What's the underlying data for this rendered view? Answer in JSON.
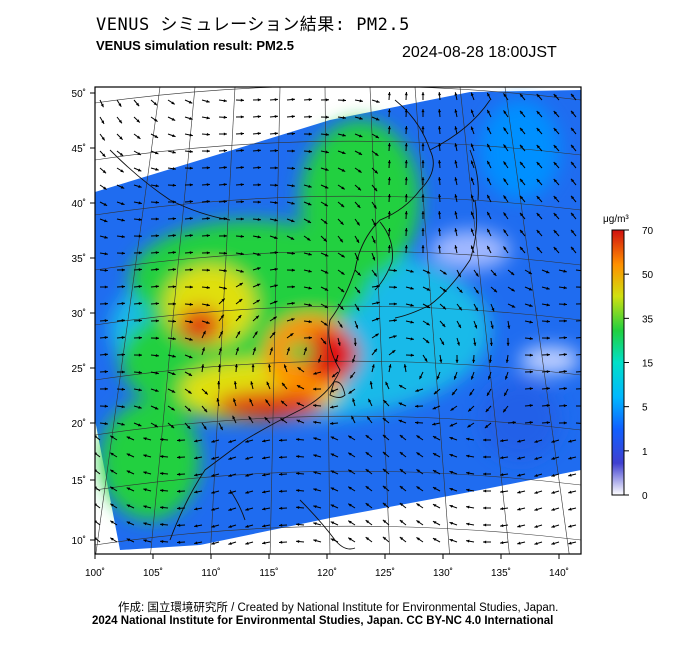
{
  "header": {
    "title_jp": "VENUS シミュレーション結果: PM2.5",
    "title_en": "VENUS simulation result: PM2.5",
    "timestamp": "2024-08-28 18:00JST"
  },
  "map": {
    "lon_ticks": [
      "100˚",
      "105˚",
      "110˚",
      "115˚",
      "120˚",
      "125˚",
      "130˚",
      "135˚",
      "140˚"
    ],
    "lat_ticks": [
      "50˚",
      "45˚",
      "40˚",
      "35˚",
      "30˚",
      "25˚",
      "20˚",
      "15˚",
      "10˚"
    ],
    "lon_range": [
      100,
      142
    ],
    "lat_range": [
      9,
      51
    ]
  },
  "colorbar": {
    "unit": "μg/m³",
    "ticks": [
      "70",
      "50",
      "35",
      "15",
      "5",
      "1",
      "0"
    ],
    "colors": [
      "#ffffff",
      "#3a3ad8",
      "#0090ff",
      "#00e0d0",
      "#10d040",
      "#c0e010",
      "#ff9000",
      "#d01010"
    ]
  },
  "footer": {
    "credit": "作成: 国立環境研究所 / Created by National Institute for Environmental Studies, Japan.",
    "license": "2024 National Institute for Environmental Studies, Japan. CC BY-NC 4.0 International"
  }
}
